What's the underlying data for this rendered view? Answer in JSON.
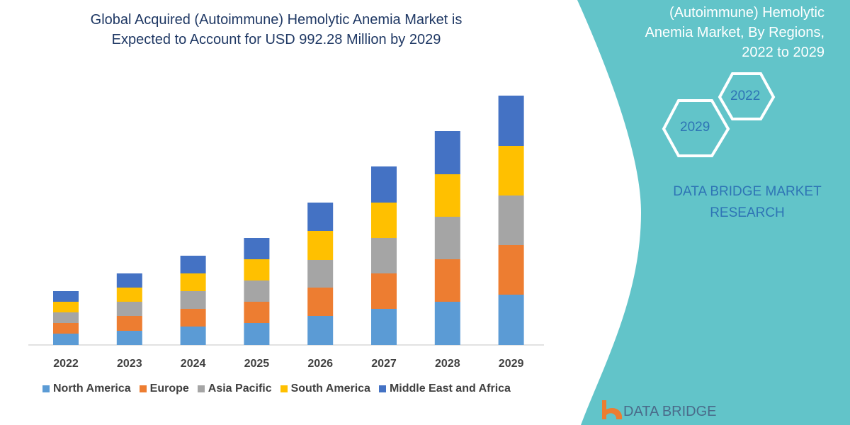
{
  "title_lines": [
    "Global Acquired (Autoimmune) Hemolytic Anemia Market is",
    "Expected to Account for USD 992.28 Million by 2029"
  ],
  "side_panel": {
    "title_lines": [
      "(Autoimmune) Hemolytic",
      "Anemia Market, By Regions,",
      "2022 to 2029"
    ],
    "hex_start": "2022",
    "hex_end": "2029",
    "brand_lines": [
      "DATA BRIDGE MARKET",
      "RESEARCH"
    ],
    "logo_text": "DATA BRIDGE",
    "panel_color": "#62c4c9"
  },
  "chart_data": {
    "type": "bar",
    "stacked": true,
    "categories": [
      "2022",
      "2023",
      "2024",
      "2025",
      "2026",
      "2027",
      "2028",
      "2029"
    ],
    "series": [
      {
        "name": "North America",
        "color": "#5b9bd5",
        "values": [
          16,
          20,
          26,
          31,
          41,
          51,
          61,
          71
        ]
      },
      {
        "name": "Europe",
        "color": "#ed7d31",
        "values": [
          15,
          21,
          25,
          30,
          40,
          50,
          60,
          70
        ]
      },
      {
        "name": "Asia Pacific",
        "color": "#a5a5a5",
        "values": [
          15,
          20,
          25,
          30,
          39,
          50,
          60,
          70
        ]
      },
      {
        "name": "South America",
        "color": "#ffc000",
        "values": [
          15,
          20,
          25,
          30,
          41,
          50,
          60,
          70
        ]
      },
      {
        "name": "Middle East and Africa",
        "color": "#4472c4",
        "values": [
          15,
          20,
          25,
          30,
          40,
          51,
          61,
          71
        ]
      }
    ],
    "y_axis_shown": false,
    "grid": false,
    "legend_position": "bottom"
  }
}
